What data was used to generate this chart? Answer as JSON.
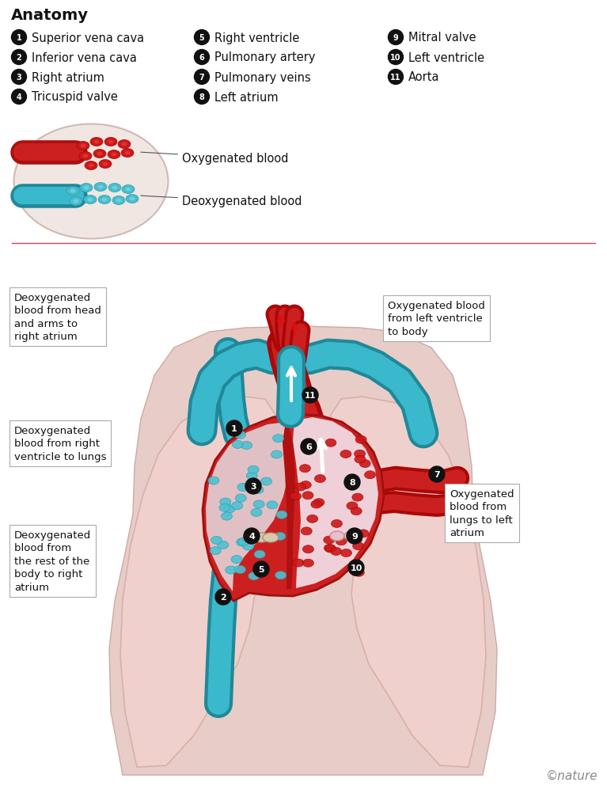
{
  "title": "Anatomy",
  "bg_color": "#ffffff",
  "legend_items": [
    {
      "num": "1",
      "text": "Superior vena cava"
    },
    {
      "num": "2",
      "text": "Inferior vena cava"
    },
    {
      "num": "3",
      "text": "Right atrium"
    },
    {
      "num": "4",
      "text": "Tricuspid valve"
    },
    {
      "num": "5",
      "text": "Right ventricle"
    },
    {
      "num": "6",
      "text": "Pulmonary artery"
    },
    {
      "num": "7",
      "text": "Pulmonary veins"
    },
    {
      "num": "8",
      "text": "Left atrium"
    },
    {
      "num": "9",
      "text": "Mitral valve"
    },
    {
      "num": "10",
      "text": "Left ventricle"
    },
    {
      "num": "11",
      "text": "Aorta"
    }
  ],
  "oxy_color": "#cc2020",
  "deoxy_color": "#3ab8cc",
  "heart_red": "#cc2020",
  "heart_wall": "#c81818",
  "chamber_deoxy_fill": "#e8c8cc",
  "chamber_oxy_fill": "#f0d0d8",
  "lung_fill": "#f0d0cc",
  "lung_edge": "#d8b0a8",
  "torso_fill": "#e8ccc8",
  "torso_edge": "#ccaaa5",
  "divider_color": "#e04050",
  "label_fontsize": 10.5,
  "title_fontsize": 14,
  "annot_fontsize": 9.5
}
